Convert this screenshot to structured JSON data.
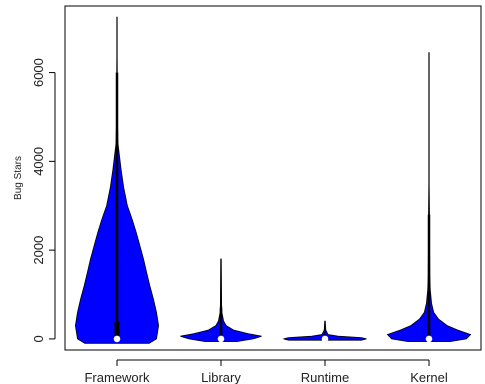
{
  "chart_data": {
    "type": "violin",
    "title": "",
    "xlabel": "",
    "ylabel": "Bug Stars",
    "categories": [
      "Framework",
      "Library",
      "Runtime",
      "Kernel"
    ],
    "yticks": [
      0,
      2000,
      4000,
      6000
    ],
    "ylim": [
      -250,
      7500
    ],
    "fill_color": "#0000ff",
    "median_marker_color": "#ffffff",
    "series": [
      {
        "category": "Framework",
        "min": 0,
        "q1": 0,
        "median": 0,
        "q3": 400,
        "whisker_max": 6000,
        "max": 7250,
        "density": [
          [
            -100,
            0.62
          ],
          [
            0,
            0.76
          ],
          [
            300,
            0.8
          ],
          [
            600,
            0.76
          ],
          [
            900,
            0.7
          ],
          [
            1200,
            0.63
          ],
          [
            1500,
            0.57
          ],
          [
            1800,
            0.51
          ],
          [
            2100,
            0.44
          ],
          [
            2400,
            0.37
          ],
          [
            2700,
            0.29
          ],
          [
            3000,
            0.2
          ],
          [
            3400,
            0.13
          ],
          [
            3800,
            0.08
          ],
          [
            4100,
            0.05
          ],
          [
            4400,
            0.02
          ],
          [
            4800,
            0.012
          ],
          [
            5600,
            0.01
          ],
          [
            6000,
            0.006
          ],
          [
            6400,
            0.004
          ],
          [
            7250,
            0.003
          ]
        ]
      },
      {
        "category": "Library",
        "min": 0,
        "q1": 0,
        "median": 0,
        "q3": 30,
        "whisker_max": 700,
        "max": 1800,
        "density": [
          [
            -60,
            0.3
          ],
          [
            0,
            0.62
          ],
          [
            60,
            0.78
          ],
          [
            120,
            0.52
          ],
          [
            200,
            0.24
          ],
          [
            300,
            0.1
          ],
          [
            400,
            0.05
          ],
          [
            600,
            0.018
          ],
          [
            800,
            0.012
          ],
          [
            1200,
            0.01
          ],
          [
            1800,
            0.006
          ]
        ]
      },
      {
        "category": "Runtime",
        "min": 0,
        "q1": 0,
        "median": 0,
        "q3": 5,
        "whisker_max": 100,
        "max": 400,
        "density": [
          [
            -30,
            0.7
          ],
          [
            0,
            0.8
          ],
          [
            30,
            0.7
          ],
          [
            60,
            0.25
          ],
          [
            100,
            0.06
          ],
          [
            200,
            0.015
          ],
          [
            400,
            0.005
          ]
        ]
      },
      {
        "category": "Kernel",
        "min": 0,
        "q1": 0,
        "median": 0,
        "q3": 50,
        "whisker_max": 2800,
        "max": 6450,
        "density": [
          [
            -60,
            0.4
          ],
          [
            0,
            0.72
          ],
          [
            100,
            0.8
          ],
          [
            200,
            0.55
          ],
          [
            300,
            0.35
          ],
          [
            450,
            0.18
          ],
          [
            600,
            0.09
          ],
          [
            800,
            0.05
          ],
          [
            1100,
            0.025
          ],
          [
            1400,
            0.015
          ],
          [
            2000,
            0.012
          ],
          [
            2800,
            0.01
          ],
          [
            3500,
            0.004
          ],
          [
            6450,
            0.003
          ]
        ]
      }
    ]
  }
}
